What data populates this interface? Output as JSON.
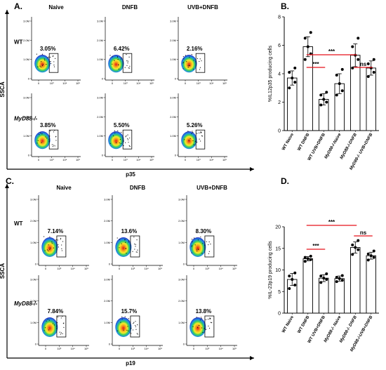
{
  "panels": {
    "A": {
      "letter": "A.",
      "col_headers": [
        "Naive",
        "DNFB",
        "UVB+DNFB"
      ],
      "row_labels": [
        "WT",
        "MyD88-/-"
      ],
      "percentages": [
        [
          "3.05%",
          "6.42%",
          "2.16%"
        ],
        [
          "3.85%",
          "5.50%",
          "5.26%"
        ]
      ],
      "y_axis_label": "SSCA",
      "x_axis_label": "p35"
    },
    "C": {
      "letter": "C.",
      "col_headers": [
        "Naive",
        "DNFB",
        "UVB+DNFB"
      ],
      "row_labels": [
        "WT",
        "MyD88-/-"
      ],
      "percentages": [
        [
          "7.14%",
          "13.6%",
          "8.30%"
        ],
        [
          "7.84%",
          "15.7%",
          "13.8%"
        ]
      ],
      "y_axis_label": "SSCA",
      "x_axis_label": "p19"
    },
    "B": {
      "letter": "B."
    },
    "D": {
      "letter": "D."
    }
  },
  "flow_axis_ticks": {
    "y": [
      "3.0M",
      "2.0M",
      "1.0M",
      "0"
    ],
    "x": [
      "0",
      "10³",
      "10⁴",
      "10⁵"
    ]
  },
  "colors": {
    "significance_line": "#e8121b",
    "bar_fill": "#ffffff",
    "bar_stroke": "#000000",
    "point": "#000000"
  },
  "chart_data": [
    {
      "id": "B",
      "type": "bar",
      "ylabel": "%IL12p35 producing cells",
      "ylim": [
        0,
        8
      ],
      "yticks": [
        0,
        2,
        4,
        6,
        8
      ],
      "categories": [
        "WT Naive",
        "WT DNFB",
        "WT UVB+DNFB",
        "MyD88-/-Naive",
        "MyD88-/-DNFB",
        "MyD88-/- UVB+DNFB"
      ],
      "values": [
        3.7,
        5.9,
        2.2,
        3.3,
        5.3,
        4.4
      ],
      "errors": [
        0.5,
        0.7,
        0.4,
        0.7,
        0.8,
        0.5
      ],
      "points": [
        [
          3.0,
          3.4,
          3.7,
          4.1,
          4.4
        ],
        [
          5.0,
          5.4,
          5.9,
          6.5,
          6.9
        ],
        [
          1.8,
          2.0,
          2.2,
          2.5,
          2.7
        ],
        [
          2.5,
          2.8,
          3.3,
          3.9,
          4.3
        ],
        [
          4.4,
          5.0,
          5.3,
          5.9,
          6.5
        ],
        [
          3.8,
          4.1,
          4.4,
          4.7,
          5.0
        ]
      ],
      "significance": [
        {
          "from": 1,
          "to": 2,
          "label": "***"
        },
        {
          "from": 1,
          "to": 4,
          "label": "***"
        },
        {
          "from": 4,
          "to": 5,
          "label": "ns"
        }
      ],
      "grid": false
    },
    {
      "id": "D",
      "type": "bar",
      "ylabel": "%IL-23p19 producing cells",
      "ylim": [
        0,
        20
      ],
      "yticks": [
        0,
        5,
        10,
        15,
        20
      ],
      "categories": [
        "WT Naive",
        "WT DNFB",
        "WT UVB+DNFB",
        "MyD88-/- Naive",
        "MyD88-/- DNFB",
        "MyD88-/-UVB+DNFB"
      ],
      "values": [
        7.8,
        12.6,
        8.1,
        8.0,
        15.2,
        13.3
      ],
      "errors": [
        1.4,
        0.5,
        0.8,
        0.6,
        1.3,
        0.8
      ],
      "points": [
        [
          5.7,
          6.5,
          7.8,
          8.6,
          9.3
        ],
        [
          12.0,
          12.4,
          12.6,
          12.9,
          13.2
        ],
        [
          7.1,
          7.8,
          8.1,
          8.6,
          9.1
        ],
        [
          7.3,
          7.6,
          8.0,
          8.3,
          8.7
        ],
        [
          13.6,
          14.7,
          15.2,
          15.8,
          16.8
        ],
        [
          12.3,
          12.9,
          13.3,
          13.7,
          14.4
        ]
      ],
      "significance": [
        {
          "from": 1,
          "to": 2,
          "label": "***"
        },
        {
          "from": 1,
          "to": 4,
          "label": "***"
        },
        {
          "from": 4,
          "to": 5,
          "label": "ns"
        }
      ],
      "grid": false
    }
  ]
}
